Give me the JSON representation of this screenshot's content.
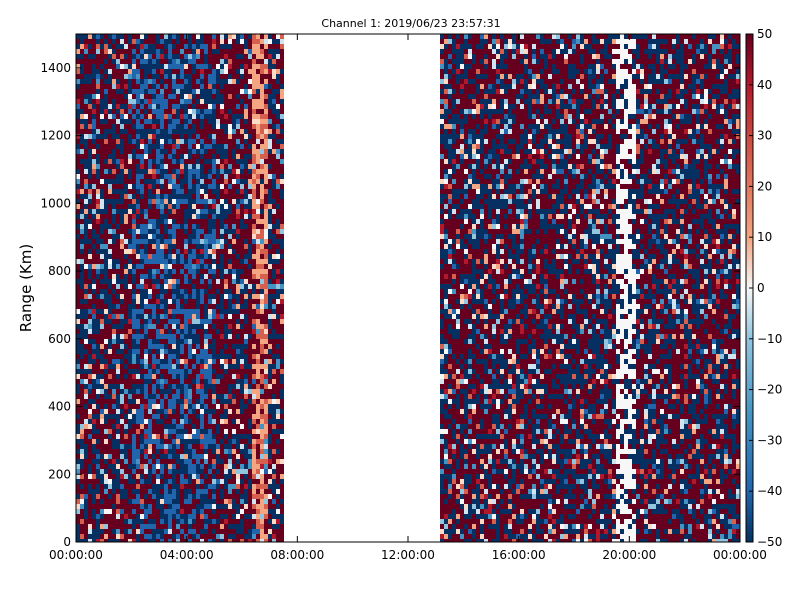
{
  "chart_data": {
    "type": "heatmap",
    "title": "Channel 1: 2019/06/23 23:57:31",
    "xlabel": "",
    "ylabel": "Range (Km)",
    "x_ticks": [
      "00:00:00",
      "04:00:00",
      "08:00:00",
      "12:00:00",
      "16:00:00",
      "20:00:00",
      "00:00:00"
    ],
    "x_range_hours": [
      0,
      24
    ],
    "y_ticks": [
      0,
      200,
      400,
      600,
      800,
      1000,
      1200,
      1400
    ],
    "ylim": [
      0,
      1500
    ],
    "colorbar": {
      "ticks": [
        50,
        40,
        30,
        20,
        10,
        0,
        -10,
        -20,
        -30,
        -40,
        -50
      ],
      "range": [
        -50,
        50
      ],
      "colormap": "RdBu_r",
      "low_color": "#053061",
      "mid_color": "#f7f7f7",
      "high_color": "#67001f"
    },
    "data_gaps_hours": [
      [
        7.5,
        13.1
      ]
    ],
    "bands_hours": [
      {
        "range": [
          6.3,
          6.9
        ],
        "character": "mostly positive (reddish)"
      },
      {
        "range": [
          19.5,
          20.2
        ],
        "character": "near zero (white)"
      }
    ],
    "grid": false,
    "legend": "colorbar-right"
  }
}
